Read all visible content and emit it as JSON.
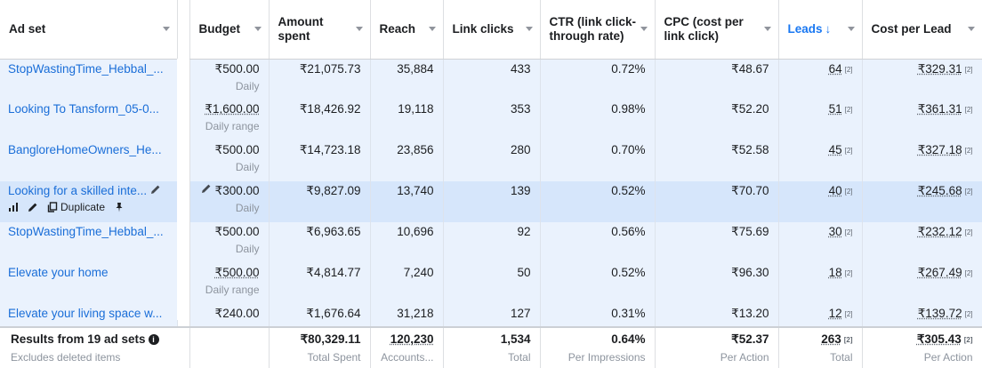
{
  "columns": [
    {
      "label": "Ad set"
    },
    {
      "label": "Budget"
    },
    {
      "label": "Amount spent"
    },
    {
      "label": "Reach"
    },
    {
      "label": "Link clicks"
    },
    {
      "label": "CTR (link click-through rate)"
    },
    {
      "label": "CPC (cost per link click)"
    },
    {
      "label": "Leads",
      "sort_arrow": "↓"
    },
    {
      "label": "Cost per Lead"
    }
  ],
  "row_actions": {
    "duplicate_label": "Duplicate"
  },
  "rows": [
    {
      "name": "StopWastingTime_Hebbal_...",
      "budget": "₹500.00",
      "budget_type": "Daily",
      "spent": "₹21,075.73",
      "reach": "35,884",
      "clicks": "433",
      "ctr": "0.72%",
      "cpc": "₹48.67",
      "leads": "64",
      "leads_ref": "[2]",
      "cpl": "₹329.31",
      "cpl_ref": "[2]"
    },
    {
      "name": "Looking To Tansform_05-0...",
      "budget": "₹1,600.00",
      "budget_type": "Daily range",
      "spent": "₹18,426.92",
      "reach": "19,118",
      "clicks": "353",
      "ctr": "0.98%",
      "cpc": "₹52.20",
      "leads": "51",
      "leads_ref": "[2]",
      "cpl": "₹361.31",
      "cpl_ref": "[2]"
    },
    {
      "name": "BangloreHomeOwners_He...",
      "budget": "₹500.00",
      "budget_type": "Daily",
      "spent": "₹14,723.18",
      "reach": "23,856",
      "clicks": "280",
      "ctr": "0.70%",
      "cpc": "₹52.58",
      "leads": "45",
      "leads_ref": "[2]",
      "cpl": "₹327.18",
      "cpl_ref": "[2]"
    },
    {
      "name": "Looking for a skilled inte...",
      "budget": "₹300.00",
      "budget_type": "Daily",
      "spent": "₹9,827.09",
      "reach": "13,740",
      "clicks": "139",
      "ctr": "0.52%",
      "cpc": "₹70.70",
      "leads": "40",
      "leads_ref": "[2]",
      "cpl": "₹245.68",
      "cpl_ref": "[2]"
    },
    {
      "name": "StopWastingTime_Hebbal_...",
      "budget": "₹500.00",
      "budget_type": "Daily",
      "spent": "₹6,963.65",
      "reach": "10,696",
      "clicks": "92",
      "ctr": "0.56%",
      "cpc": "₹75.69",
      "leads": "30",
      "leads_ref": "[2]",
      "cpl": "₹232.12",
      "cpl_ref": "[2]"
    },
    {
      "name": "Elevate your home",
      "budget": "₹500.00",
      "budget_type": "Daily range",
      "spent": "₹4,814.77",
      "reach": "7,240",
      "clicks": "50",
      "ctr": "0.52%",
      "cpc": "₹96.30",
      "leads": "18",
      "leads_ref": "[2]",
      "cpl": "₹267.49",
      "cpl_ref": "[2]"
    },
    {
      "name": "Elevate your living space w...",
      "budget": "₹240.00",
      "budget_type": "",
      "spent": "₹1,676.64",
      "reach": "31,218",
      "clicks": "127",
      "ctr": "0.31%",
      "cpc": "₹13.20",
      "leads": "12",
      "leads_ref": "[2]",
      "cpl": "₹139.72",
      "cpl_ref": "[2]"
    }
  ],
  "footer": {
    "title": "Results from 19 ad sets",
    "subtitle": "Excludes deleted items",
    "spent": "₹80,329.11",
    "spent_sub": "Total Spent",
    "reach": "120,230",
    "reach_sub": "Accounts...",
    "clicks": "1,534",
    "clicks_sub": "Total",
    "ctr": "0.64%",
    "ctr_sub": "Per Impressions",
    "cpc": "₹52.37",
    "cpc_sub": "Per Action",
    "leads": "263",
    "leads_ref": "[2]",
    "leads_sub": "Total",
    "cpl": "₹305.43",
    "cpl_ref": "[2]",
    "cpl_sub": "Per Action"
  }
}
